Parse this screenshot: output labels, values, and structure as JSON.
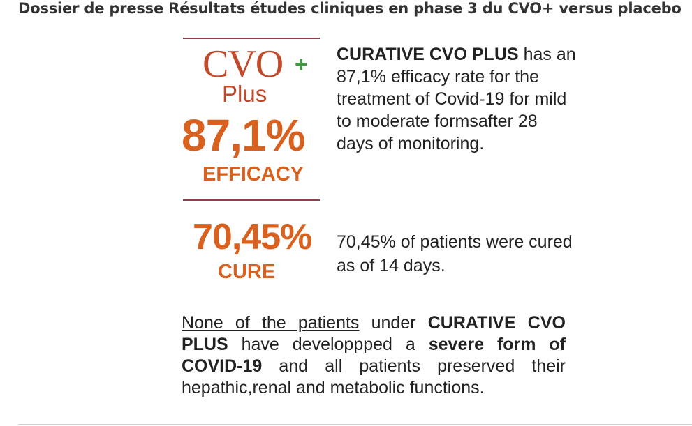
{
  "header": {
    "title": "Dossier de presse Résultats études cliniques en phase 3 du CVO+ versus placebo"
  },
  "figure": {
    "logo": {
      "text": "CVO",
      "plus": "+",
      "sub": "Plus"
    },
    "efficacy": {
      "value": "87,1%",
      "label": "EFFICACY"
    },
    "efficacy_description": {
      "brand": "CURATIVE CVO PLUS",
      "text": " has an 87,1% efficacy rate for the treatment of Covid-19 for mild to moderate formsafter 28 days of monitoring."
    },
    "cure": {
      "value": "70,45%",
      "label": "CURE"
    },
    "cure_description": "70,45% of patients were cured as of 14 days.",
    "summary": {
      "part1": "None of the patients",
      "part2": " under ",
      "part3": "CURATIVE CVO PLUS",
      "part4": " have developpped a ",
      "part5": "severe form of COVID-19",
      "part6": " and all patients preserved  their hepathic,renal and metabolic functions."
    },
    "colors": {
      "orange": "#d9611f",
      "logo_red": "#c24a2c",
      "plus_green": "#3e9b3f",
      "rule": "#9b3a4a"
    }
  }
}
